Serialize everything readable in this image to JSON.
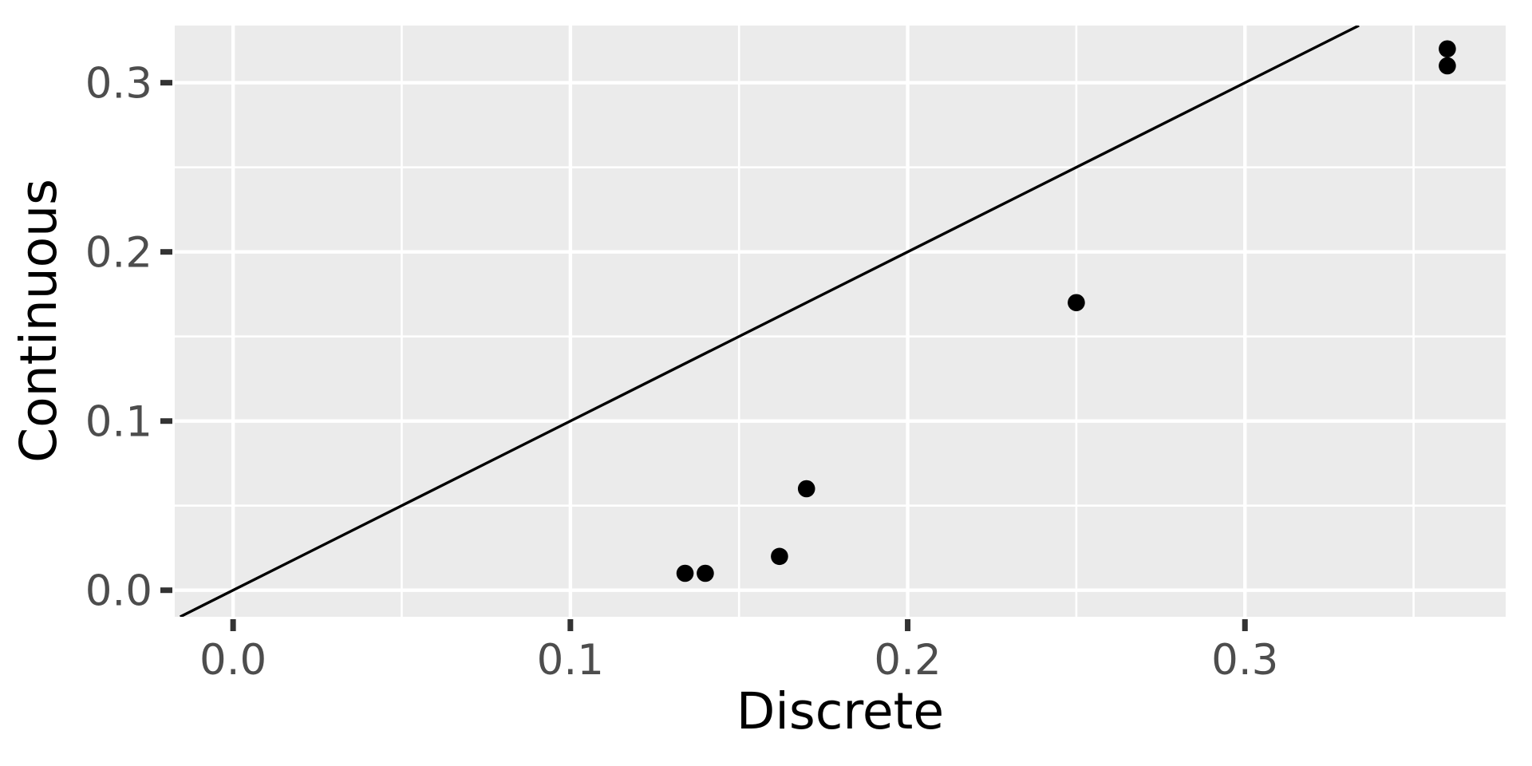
{
  "chart_data": {
    "type": "scatter",
    "title": "",
    "xlabel": "Discrete",
    "ylabel": "Continuous",
    "xlim": [
      -0.0173,
      0.3773
    ],
    "ylim": [
      -0.0157,
      0.3338
    ],
    "x_major_ticks": [
      0.0,
      0.1,
      0.2,
      0.3
    ],
    "x_tick_labels": [
      "0.0",
      "0.1",
      "0.2",
      "0.3"
    ],
    "x_minor_ticks": [
      0.05,
      0.15,
      0.25,
      0.35
    ],
    "y_major_ticks": [
      0.0,
      0.1,
      0.2,
      0.3
    ],
    "y_tick_labels": [
      "0.0",
      "0.1",
      "0.2",
      "0.3"
    ],
    "y_minor_ticks": [
      0.05,
      0.15,
      0.25
    ],
    "points": [
      {
        "x": 0.134,
        "y": 0.01
      },
      {
        "x": 0.14,
        "y": 0.01
      },
      {
        "x": 0.162,
        "y": 0.02
      },
      {
        "x": 0.17,
        "y": 0.06
      },
      {
        "x": 0.25,
        "y": 0.17
      },
      {
        "x": 0.36,
        "y": 0.31
      },
      {
        "x": 0.36,
        "y": 0.32
      }
    ],
    "reference_line": {
      "slope": 1,
      "intercept": 0
    },
    "legend": "none",
    "grid": "on",
    "colors": {
      "panel_background": "#EBEBEB",
      "grid_major": "#FFFFFF",
      "grid_minor": "#FFFFFF",
      "point": "#000000",
      "reference_line": "#000000",
      "tick_mark": "#333333",
      "tick_label": "#4D4D4D",
      "axis_title": "#000000",
      "outer_background": "#FFFFFF"
    }
  }
}
